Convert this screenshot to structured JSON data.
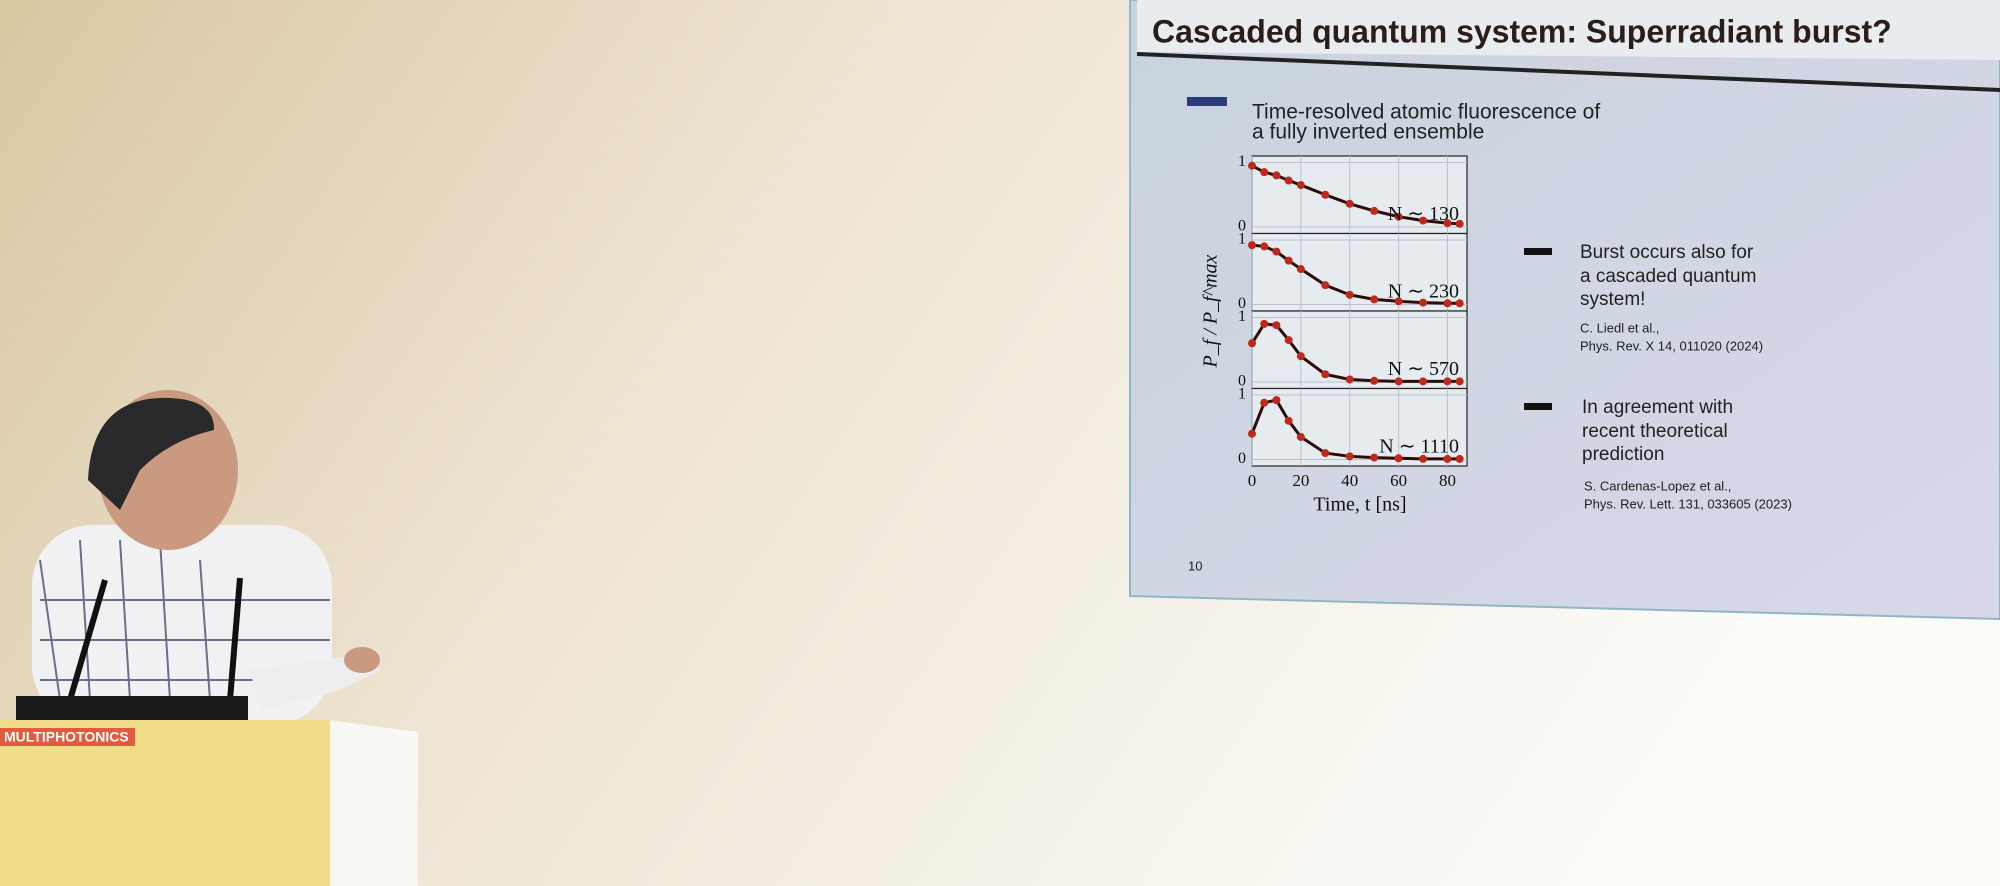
{
  "slide": {
    "title": "Cascaded quantum system: Superradiant burst?",
    "bullet_1": [
      "Time-resolved atomic fluorescence of",
      "a fully inverted ensemble"
    ],
    "bullet_2": [
      "Burst occurs also for",
      "a cascaded quantum",
      "system!"
    ],
    "ref_2": [
      "C. Liedl et al.,",
      "Phys. Rev. X 14, 011020 (2024)"
    ],
    "bullet_3": [
      "In agreement with",
      "recent theoretical",
      "prediction"
    ],
    "ref_3": [
      "S. Cardenas-Lopez et al.,",
      "Phys. Rev. Lett. 131, 033605 (2023)"
    ],
    "page_number": "10",
    "y_label": "P_f / P_f^max",
    "x_label": "Time, t [ns]"
  },
  "podium": {
    "logo": "MULTIPHOTONICS"
  },
  "chart_data": [
    {
      "type": "line",
      "annotation": "N ∼ 130",
      "x": [
        0,
        5,
        10,
        15,
        20,
        30,
        40,
        50,
        60,
        70,
        80,
        85
      ],
      "values": [
        0.95,
        0.85,
        0.8,
        0.72,
        0.65,
        0.5,
        0.36,
        0.25,
        0.16,
        0.1,
        0.06,
        0.05
      ],
      "color": "#2a0d08",
      "xlim": [
        0,
        88
      ],
      "xticks": [
        0,
        20,
        40,
        60,
        80
      ],
      "ylim": [
        -0.1,
        1.1
      ],
      "yticks": [
        0,
        1
      ],
      "grid": true,
      "show_xtick_labels": false
    },
    {
      "type": "line",
      "annotation": "N ∼ 230",
      "x": [
        0,
        5,
        10,
        15,
        20,
        30,
        40,
        50,
        60,
        70,
        80,
        85
      ],
      "values": [
        0.92,
        0.9,
        0.82,
        0.68,
        0.55,
        0.3,
        0.15,
        0.08,
        0.05,
        0.03,
        0.02,
        0.02
      ],
      "color": "#2a0d08",
      "xlim": [
        0,
        88
      ],
      "xticks": [
        0,
        20,
        40,
        60,
        80
      ],
      "ylim": [
        -0.1,
        1.1
      ],
      "yticks": [
        0,
        1
      ],
      "grid": true,
      "show_xtick_labels": false
    },
    {
      "type": "line",
      "annotation": "N ∼ 570",
      "x": [
        0,
        5,
        10,
        15,
        20,
        30,
        40,
        50,
        60,
        70,
        80,
        85
      ],
      "values": [
        0.6,
        0.9,
        0.88,
        0.65,
        0.4,
        0.12,
        0.04,
        0.02,
        0.01,
        0.01,
        0.01,
        0.01
      ],
      "color": "#2a0d08",
      "xlim": [
        0,
        88
      ],
      "xticks": [
        0,
        20,
        40,
        60,
        80
      ],
      "ylim": [
        -0.1,
        1.1
      ],
      "yticks": [
        0,
        1
      ],
      "grid": true,
      "show_xtick_labels": false
    },
    {
      "type": "line",
      "annotation": "N ∼ 1110",
      "x": [
        0,
        5,
        10,
        15,
        20,
        30,
        40,
        50,
        60,
        70,
        80,
        85
      ],
      "values": [
        0.4,
        0.88,
        0.92,
        0.6,
        0.35,
        0.1,
        0.05,
        0.03,
        0.02,
        0.01,
        0.01,
        0.01
      ],
      "color": "#2a0d08",
      "xlim": [
        0,
        88
      ],
      "xticks": [
        0,
        20,
        40,
        60,
        80
      ],
      "ylim": [
        -0.1,
        1.1
      ],
      "yticks": [
        0,
        1
      ],
      "grid": true,
      "show_xtick_labels": true
    }
  ]
}
